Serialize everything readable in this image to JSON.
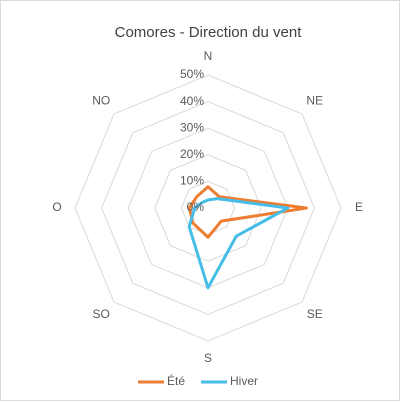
{
  "chart_data": {
    "type": "radar",
    "title": "Comores - Direction du vent",
    "categories": [
      "N",
      "NE",
      "E",
      "SE",
      "S",
      "SO",
      "O",
      "NO"
    ],
    "series": [
      {
        "name": "Été",
        "color": "#ed7d31",
        "values": [
          8,
          6,
          37,
          7,
          11,
          8,
          7,
          6
        ]
      },
      {
        "name": "Hiver",
        "color": "#45bde6",
        "values": [
          3,
          5,
          30,
          15,
          30,
          10,
          5,
          3
        ]
      }
    ],
    "ylim": [
      0,
      50
    ],
    "yticks": [
      {
        "value": 0,
        "label": "0%"
      },
      {
        "value": 10,
        "label": "10%"
      },
      {
        "value": 20,
        "label": "20%"
      },
      {
        "value": 30,
        "label": "30%"
      },
      {
        "value": 40,
        "label": "40%"
      },
      {
        "value": 50,
        "label": "50%"
      }
    ],
    "grid": true,
    "legend": "bottom"
  }
}
